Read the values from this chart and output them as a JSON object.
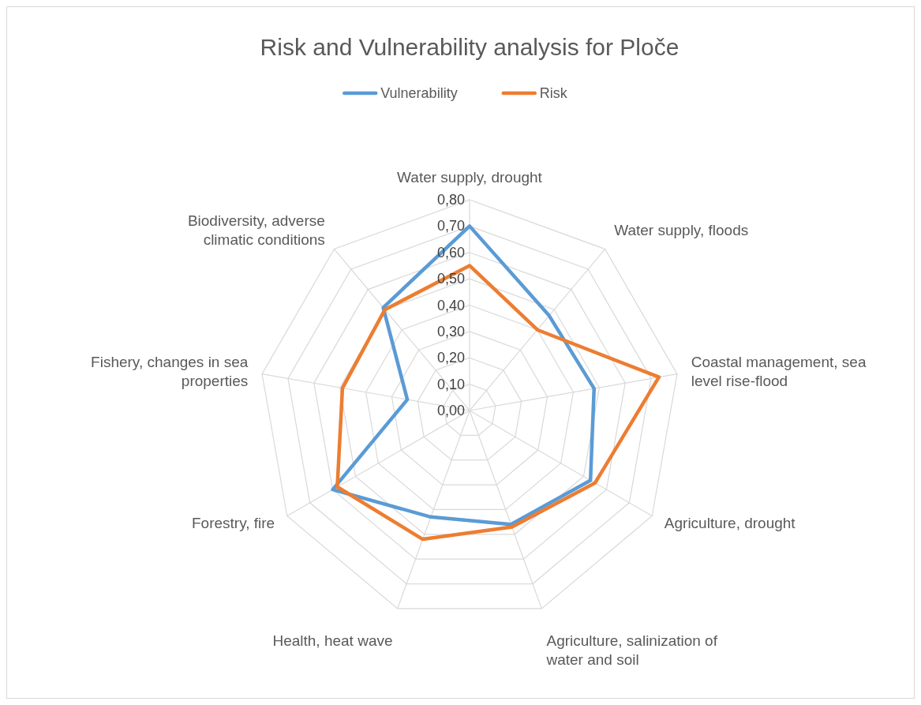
{
  "chart_data": {
    "type": "radar",
    "title": "Risk and Vulnerability analysis for Ploče",
    "legend": "top",
    "grid": true,
    "categories": [
      "Water supply, drought",
      "Water supply, floods",
      "Coastal management, sea level rise-flood",
      "Agriculture, drought",
      "Agriculture, salinization of water and soil",
      "Health, heat wave",
      "Forestry, fire",
      "Fishery, changes in sea properties",
      "Biodiversity, adverse climatic conditions"
    ],
    "ylim": [
      0,
      0.8
    ],
    "yticks": [
      {
        "value": 0,
        "label": "0,00"
      },
      {
        "value": 0.1,
        "label": "0,10"
      },
      {
        "value": 0.2,
        "label": "0,20"
      },
      {
        "value": 0.3,
        "label": "0,30"
      },
      {
        "value": 0.4,
        "label": "0,40"
      },
      {
        "value": 0.5,
        "label": "0,50"
      },
      {
        "value": 0.6,
        "label": "0,60"
      },
      {
        "value": 0.7,
        "label": "0,70"
      },
      {
        "value": 0.8,
        "label": "0,80"
      }
    ],
    "series": [
      {
        "name": "Vulnerability",
        "color": "#5b9bd5",
        "values": [
          0.7,
          0.47,
          0.48,
          0.53,
          0.46,
          0.43,
          0.6,
          0.24,
          0.51
        ]
      },
      {
        "name": "Risk",
        "color": "#ed7d31",
        "values": [
          0.55,
          0.4,
          0.73,
          0.55,
          0.47,
          0.52,
          0.58,
          0.49,
          0.5
        ]
      }
    ]
  }
}
